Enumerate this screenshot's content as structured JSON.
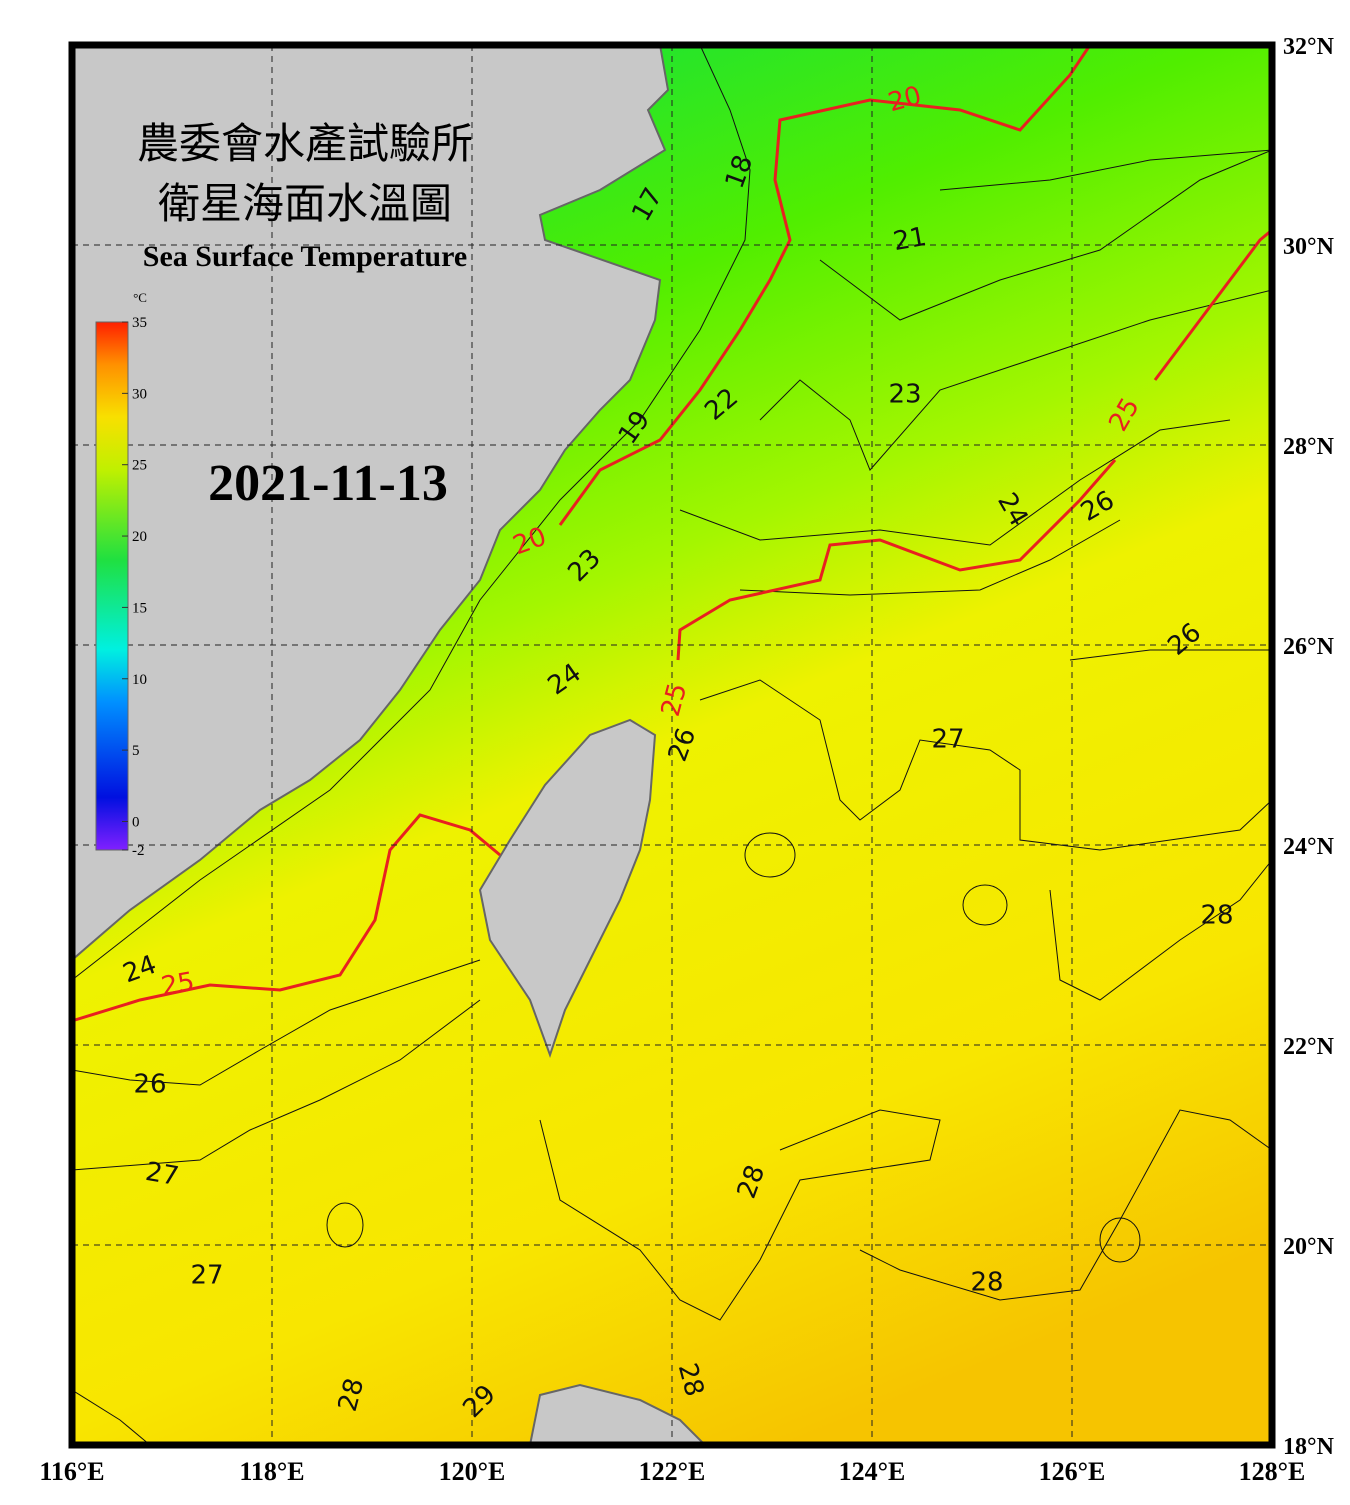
{
  "header": {
    "title_zh_1": "農委會水產試驗所",
    "title_zh_2": "衛星海面水溫圖",
    "title_en": "Sea Surface Temperature",
    "date": "2021-11-13"
  },
  "colorbar": {
    "unit": "°C",
    "range": [
      -2,
      35
    ],
    "ticks": [
      35,
      30,
      25,
      20,
      15,
      10,
      5,
      0,
      -2
    ]
  },
  "map": {
    "xlim": [
      116,
      128
    ],
    "ylim": [
      18,
      32
    ],
    "lon_ticks": [
      {
        "value": 116,
        "label": "116°E"
      },
      {
        "value": 118,
        "label": "118°E"
      },
      {
        "value": 120,
        "label": "120°E"
      },
      {
        "value": 122,
        "label": "122°E"
      },
      {
        "value": 124,
        "label": "124°E"
      },
      {
        "value": 126,
        "label": "126°E"
      },
      {
        "value": 128,
        "label": "128°E"
      }
    ],
    "lat_ticks": [
      {
        "value": 18,
        "label": "18°N"
      },
      {
        "value": 20,
        "label": "20°N"
      },
      {
        "value": 22,
        "label": "22°N"
      },
      {
        "value": 24,
        "label": "24°N"
      },
      {
        "value": 26,
        "label": "26°N"
      },
      {
        "value": 28,
        "label": "28°N"
      },
      {
        "value": 30,
        "label": "30°N"
      },
      {
        "value": 32,
        "label": "32°N"
      }
    ],
    "contour_labels": [
      17,
      18,
      20,
      21,
      22,
      19,
      23,
      25,
      24,
      26,
      20,
      23,
      26,
      24,
      25,
      26,
      27,
      28,
      25,
      24,
      26,
      27,
      28,
      27,
      28,
      28,
      29,
      28
    ]
  }
}
